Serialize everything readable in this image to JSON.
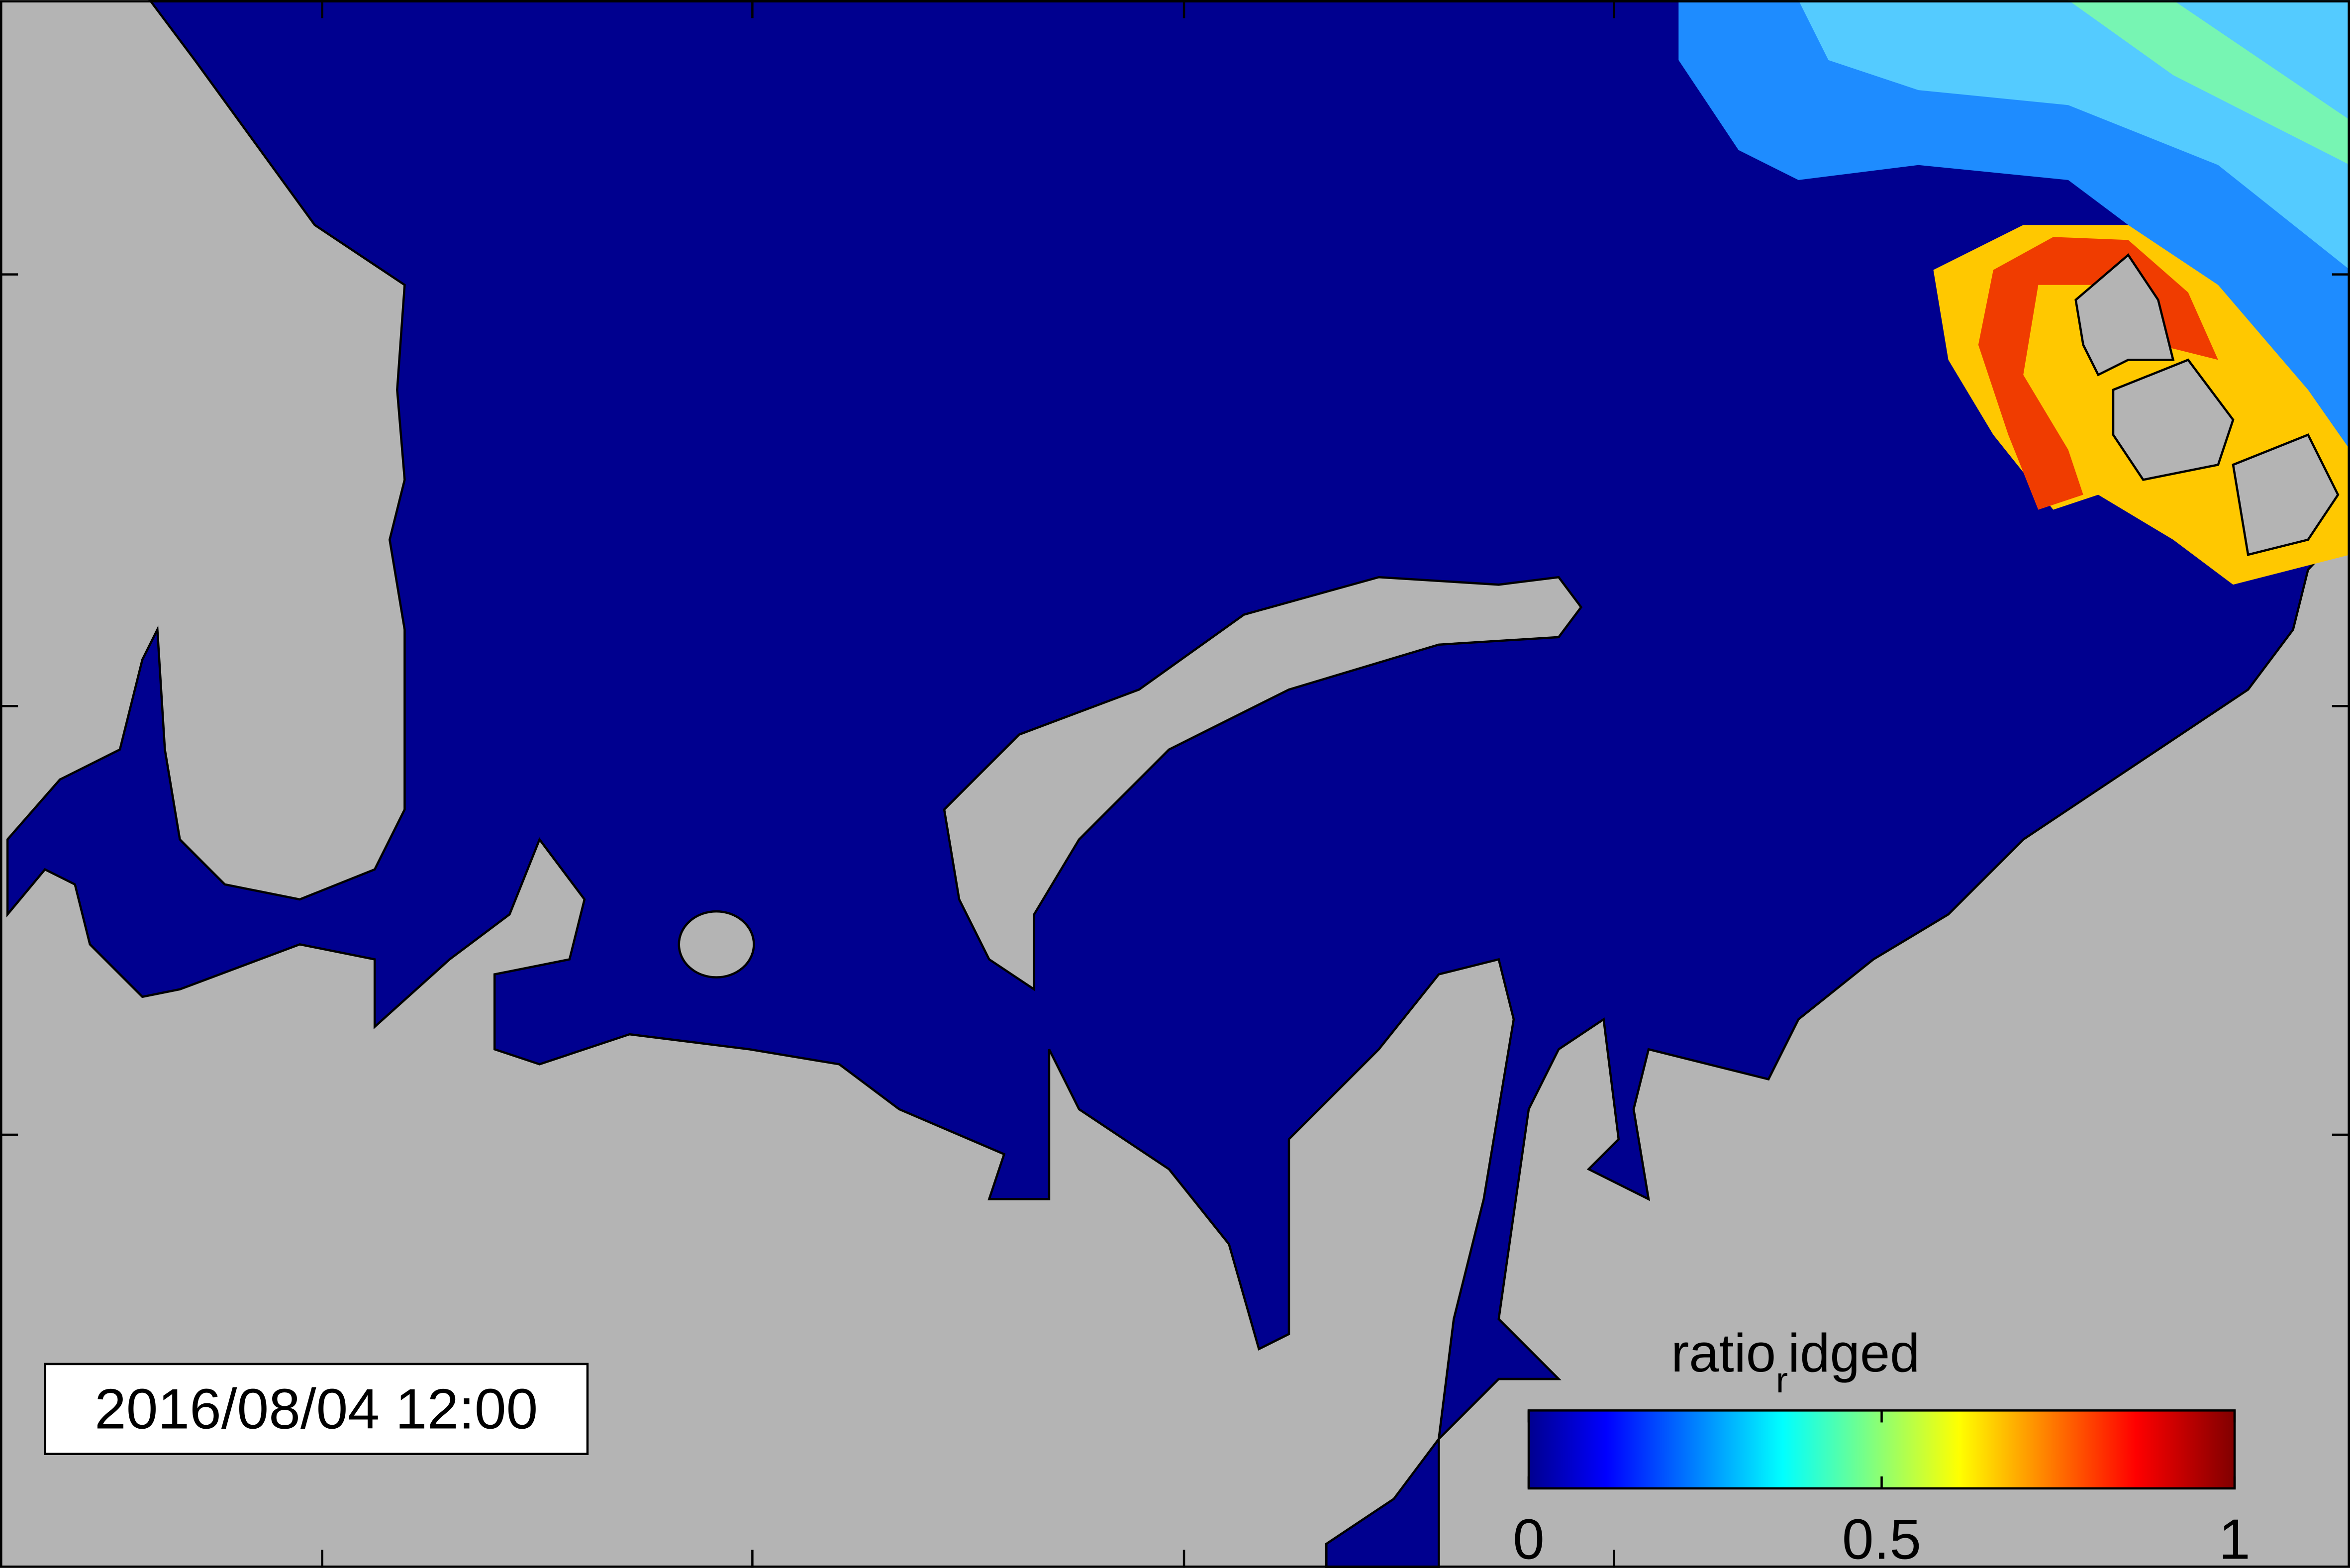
{
  "timestamp": "2016/08/04 12:00",
  "colorbar": {
    "title": "ratio",
    "title_subscript": "r",
    "title_rest": "idged",
    "lim": [
      0,
      1
    ],
    "ticks": [
      0,
      0.5,
      1
    ]
  }
}
